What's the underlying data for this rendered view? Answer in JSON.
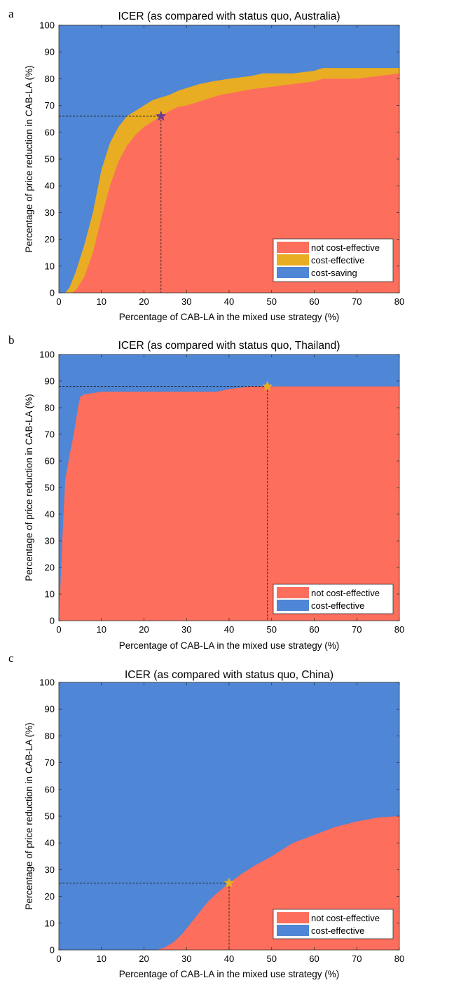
{
  "chart_data": [
    {
      "type": "area",
      "panel_letter": "a",
      "title": "ICER (as compared with status quo, Australia)",
      "xlabel": "Percentage of CAB-LA in the mixed use strategy (%)",
      "ylabel": "Percentage of price reduction in CAB-LA (%)",
      "xlim": [
        0,
        80
      ],
      "ylim": [
        0,
        100
      ],
      "xticks": [
        0,
        10,
        20,
        30,
        40,
        50,
        60,
        70,
        80
      ],
      "yticks": [
        0,
        10,
        20,
        30,
        40,
        50,
        60,
        70,
        80,
        90,
        100
      ],
      "background_region": {
        "name": "cost-saving",
        "color": "#4f86d6"
      },
      "regions": [
        {
          "name": "cost-effective",
          "color": "#e8ad23",
          "boundary_x": [
            0,
            1.5,
            2.5,
            4,
            6,
            8,
            10,
            12,
            14,
            16,
            18,
            20,
            22,
            24,
            26,
            28,
            30,
            33,
            36,
            40,
            45,
            48,
            50,
            55,
            60,
            62,
            70,
            80
          ],
          "boundary_y": [
            0,
            0,
            2,
            8,
            18,
            30,
            46,
            56,
            62,
            66,
            68,
            70,
            72,
            73,
            74,
            75.5,
            76.5,
            78,
            79,
            80,
            81,
            82,
            82,
            82,
            83,
            84,
            84,
            84
          ]
        },
        {
          "name": "not cost-effective",
          "color": "#fd6e5c",
          "boundary_x": [
            0,
            3,
            4,
            6,
            8,
            10,
            12,
            14,
            16,
            18,
            20,
            22,
            24,
            26,
            28,
            30,
            34,
            38,
            40,
            45,
            50,
            55,
            60,
            62,
            65,
            70,
            75,
            80
          ],
          "boundary_y": [
            0,
            0,
            1,
            6,
            15,
            28,
            40,
            49,
            55,
            59,
            62,
            64,
            66,
            68,
            69.5,
            70,
            72,
            74,
            74.5,
            76,
            77,
            78,
            79,
            80,
            80,
            80,
            81,
            82
          ]
        }
      ],
      "legend": [
        {
          "label": "not cost-effective",
          "color": "#fd6e5c"
        },
        {
          "label": "cost-effective",
          "color": "#e8ad23"
        },
        {
          "label": "cost-saving",
          "color": "#4f86d6"
        }
      ],
      "legend_position": "bottom-right",
      "marker": {
        "x": 24,
        "y": 66,
        "color": "#6f3c8f"
      }
    },
    {
      "type": "area",
      "panel_letter": "b",
      "title": "ICER (as compared with status quo, Thailand)",
      "xlabel": "Percentage of CAB-LA in the mixed use strategy (%)",
      "ylabel": "Percentage of price reduction in CAB-LA (%)",
      "xlim": [
        0,
        80
      ],
      "ylim": [
        0,
        100
      ],
      "xticks": [
        0,
        10,
        20,
        30,
        40,
        50,
        60,
        70,
        80
      ],
      "yticks": [
        0,
        10,
        20,
        30,
        40,
        50,
        60,
        70,
        80,
        90,
        100
      ],
      "background_region": {
        "name": "cost-effective",
        "color": "#4f86d6"
      },
      "regions": [
        {
          "name": "not cost-effective",
          "color": "#fd6e5c",
          "boundary_x": [
            0,
            0.3,
            0.8,
            1.5,
            2.5,
            3.5,
            4.5,
            5,
            6,
            8,
            10,
            20,
            30,
            37,
            40,
            45,
            49,
            60,
            70,
            80
          ],
          "boundary_y": [
            0,
            10,
            30,
            53,
            62,
            70,
            80,
            84,
            85,
            85.5,
            86,
            86,
            86,
            86,
            87,
            88,
            88,
            88,
            88,
            88
          ]
        }
      ],
      "legend": [
        {
          "label": "not cost-effective",
          "color": "#fd6e5c"
        },
        {
          "label": "cost-effective",
          "color": "#4f86d6"
        }
      ],
      "legend_position": "bottom-right",
      "marker": {
        "x": 49,
        "y": 88,
        "color": "#e8ad23"
      }
    },
    {
      "type": "area",
      "panel_letter": "c",
      "title": "ICER (as compared with status quo, China)",
      "xlabel": "Percentage of CAB-LA in the mixed use strategy (%)",
      "ylabel": "Percentage of price reduction in CAB-LA (%)",
      "xlim": [
        0,
        80
      ],
      "ylim": [
        0,
        100
      ],
      "xticks": [
        0,
        10,
        20,
        30,
        40,
        50,
        60,
        70,
        80
      ],
      "yticks": [
        0,
        10,
        20,
        30,
        40,
        50,
        60,
        70,
        80,
        90,
        100
      ],
      "background_region": {
        "name": "cost-effective",
        "color": "#4f86d6"
      },
      "regions": [
        {
          "name": "not cost-effective",
          "color": "#fd6e5c",
          "boundary_x": [
            0,
            23,
            25,
            27,
            29,
            31,
            33,
            35,
            37,
            40,
            43,
            46,
            50,
            55,
            60,
            65,
            70,
            75,
            80
          ],
          "boundary_y": [
            0,
            0,
            1,
            3,
            6,
            10,
            14,
            18,
            21,
            25,
            28.5,
            31.5,
            35,
            40,
            43,
            46,
            48,
            49.5,
            50
          ]
        }
      ],
      "legend": [
        {
          "label": "not cost-effective",
          "color": "#fd6e5c"
        },
        {
          "label": "cost-effective",
          "color": "#4f86d6"
        }
      ],
      "legend_position": "bottom-right",
      "marker": {
        "x": 40,
        "y": 25,
        "color": "#e8ad23"
      }
    }
  ]
}
